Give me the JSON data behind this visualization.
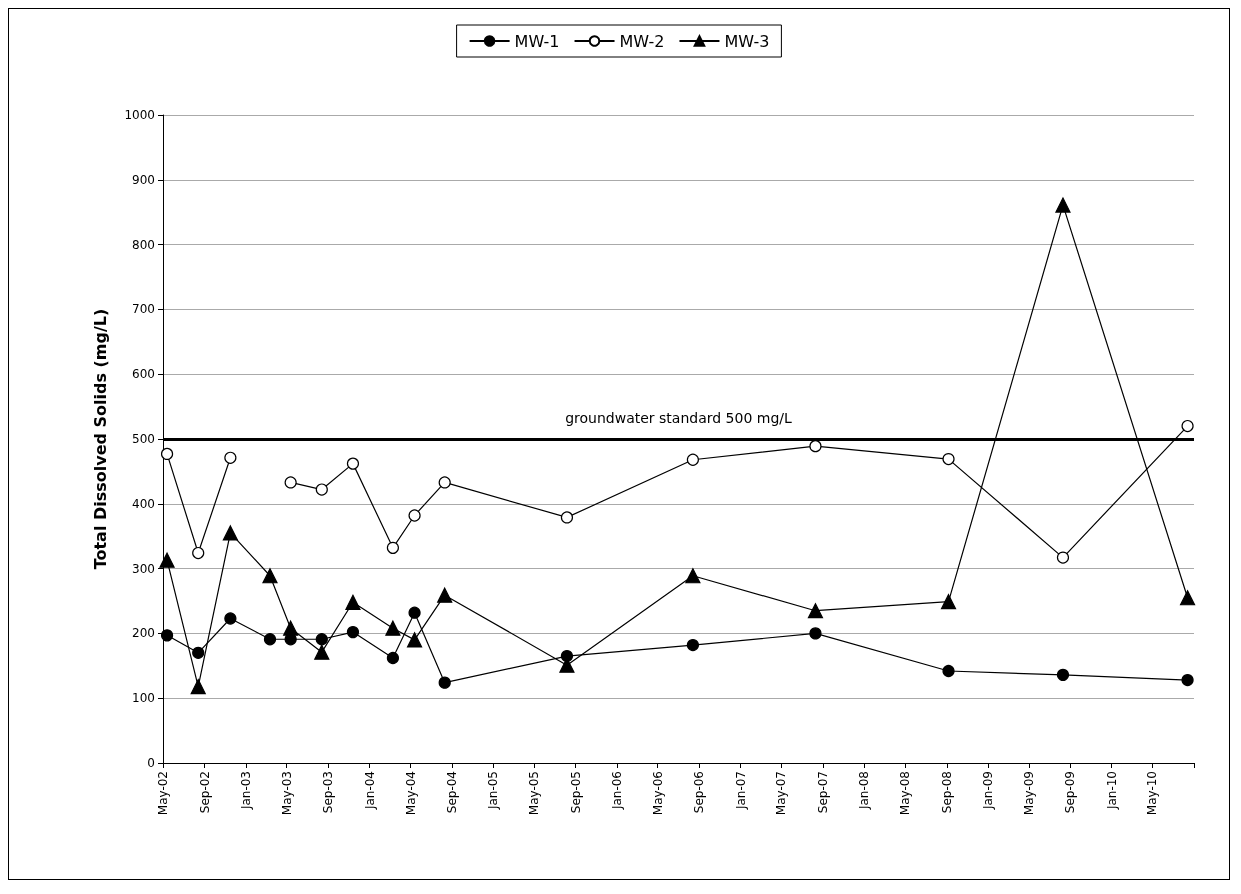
{
  "chart_data": {
    "type": "line",
    "ylabel": "Total Dissolved Solids (mg/L)",
    "x": [
      "2002-05-13",
      "2002-08-13",
      "2002-11-16",
      "2003-03-13",
      "2003-05-13",
      "2003-08-13",
      "2003-11-13",
      "2004-03-10",
      "2004-05-13",
      "2004-08-10",
      "2005-08-06",
      "2006-08-13",
      "2007-08-10",
      "2008-09-06",
      "2009-08-10",
      "2010-08-13"
    ],
    "series": [
      {
        "name": "MW-1",
        "color": "#000000",
        "marker": "circle",
        "values": [
          197,
          170,
          223,
          191,
          191,
          191,
          202,
          162,
          232,
          124,
          165,
          182,
          200,
          142,
          136,
          128
        ]
      },
      {
        "name": "MW-2",
        "color": "#ffffff",
        "marker": "circle",
        "values": [
          477,
          324,
          471,
          null,
          433,
          422,
          462,
          332,
          382,
          433,
          379,
          468,
          489,
          469,
          317,
          520
        ]
      },
      {
        "name": "MW-3",
        "color": "#000000",
        "marker": "triangle",
        "values": [
          313,
          118,
          355,
          289,
          208,
          171,
          248,
          208,
          190,
          259,
          151,
          289,
          235,
          249,
          861,
          255
        ]
      }
    ],
    "xlim": [
      "2002-05",
      "2010-09"
    ],
    "xticks": [
      {
        "value": "2002-05",
        "label": "May-02"
      },
      {
        "value": "2002-09",
        "label": "Sep-02"
      },
      {
        "value": "2003-01",
        "label": "Jan-03"
      },
      {
        "value": "2003-05",
        "label": "May-03"
      },
      {
        "value": "2003-09",
        "label": "Sep-03"
      },
      {
        "value": "2004-01",
        "label": "Jan-04"
      },
      {
        "value": "2004-05",
        "label": "May-04"
      },
      {
        "value": "2004-09",
        "label": "Sep-04"
      },
      {
        "value": "2005-01",
        "label": "Jan-05"
      },
      {
        "value": "2005-05",
        "label": "May-05"
      },
      {
        "value": "2005-09",
        "label": "Sep-05"
      },
      {
        "value": "2006-01",
        "label": "Jan-06"
      },
      {
        "value": "2006-05",
        "label": "May-06"
      },
      {
        "value": "2006-09",
        "label": "Sep-06"
      },
      {
        "value": "2007-01",
        "label": "Jan-07"
      },
      {
        "value": "2007-05",
        "label": "May-07"
      },
      {
        "value": "2007-09",
        "label": "Sep-07"
      },
      {
        "value": "2008-01",
        "label": "Jan-08"
      },
      {
        "value": "2008-05",
        "label": "May-08"
      },
      {
        "value": "2008-09",
        "label": "Sep-08"
      },
      {
        "value": "2009-01",
        "label": "Jan-09"
      },
      {
        "value": "2009-05",
        "label": "May-09"
      },
      {
        "value": "2009-09",
        "label": "Sep-09"
      },
      {
        "value": "2010-01",
        "label": "Jan-10"
      },
      {
        "value": "2010-05",
        "label": "May-10"
      },
      {
        "value": "2010-09",
        "label": null
      }
    ],
    "ylim": [
      0,
      1000
    ],
    "yticks": [
      0,
      100,
      200,
      300,
      400,
      500,
      600,
      700,
      800,
      900,
      1000
    ],
    "ref_lines": [
      {
        "axis": "y",
        "value": 500,
        "label": "groundwater standard 500 mg/L",
        "color": "#000000"
      }
    ],
    "grid": "y",
    "legend": "top",
    "line_style": "solid"
  }
}
